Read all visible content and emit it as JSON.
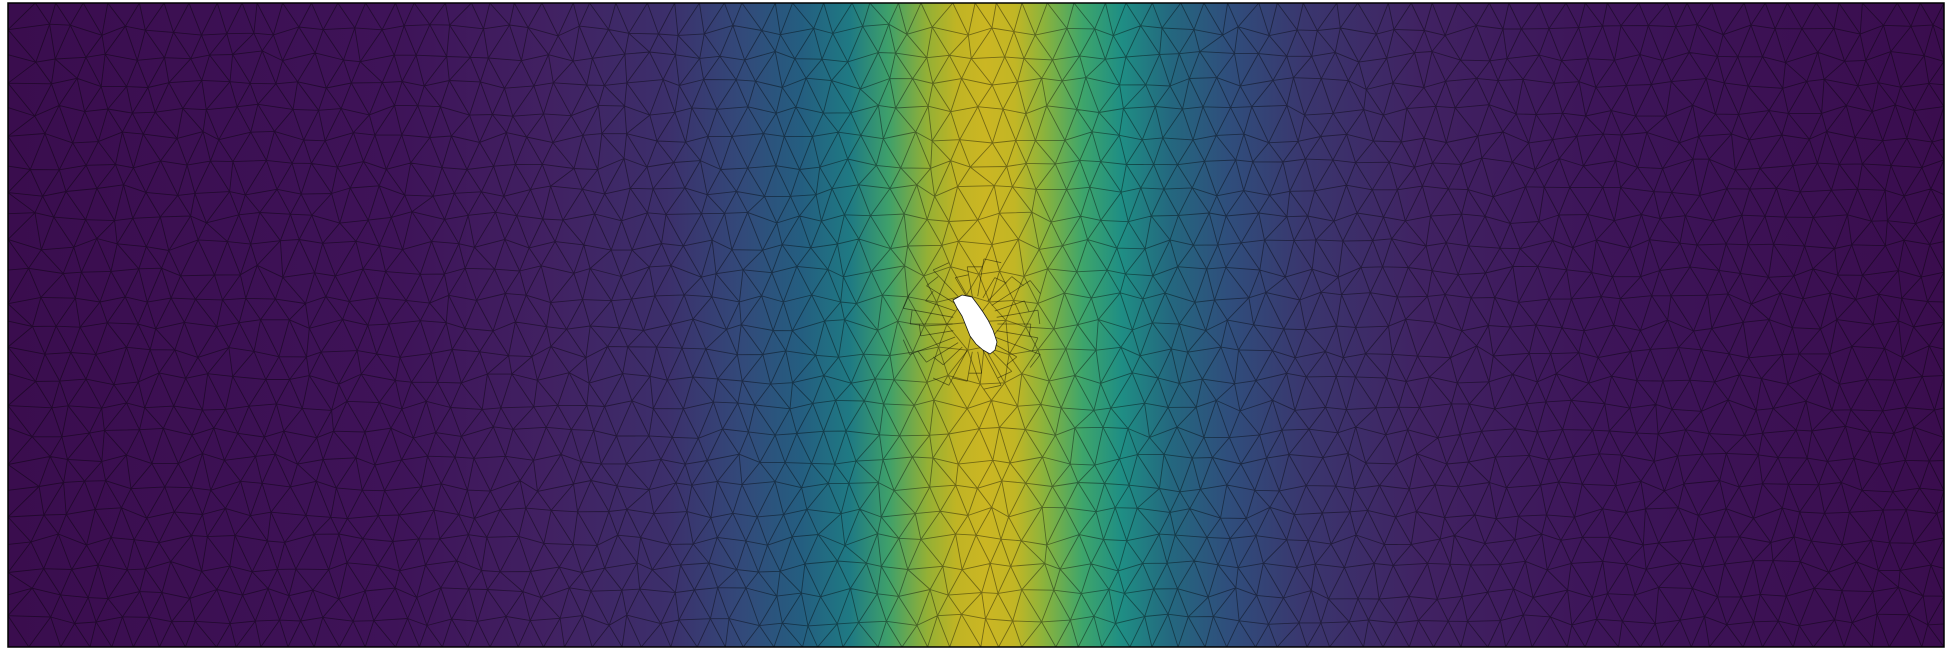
{
  "figure": {
    "kind": "finite-element mesh colored by a scalar field",
    "colormap": "viridis",
    "colormap_stops": [
      "#440154",
      "#3b528b",
      "#21918c",
      "#5ec962",
      "#fde725"
    ],
    "mesh_edge_color": "#000000",
    "border_color": "#000000",
    "hole_color": "#ffffff",
    "background": "#ffffff",
    "field_shape": "vertical band of high values through the center, decaying toward left and right edges",
    "features": [
      "triangular-mesh",
      "central-hole",
      "mesh-refinement-around-hole"
    ]
  }
}
